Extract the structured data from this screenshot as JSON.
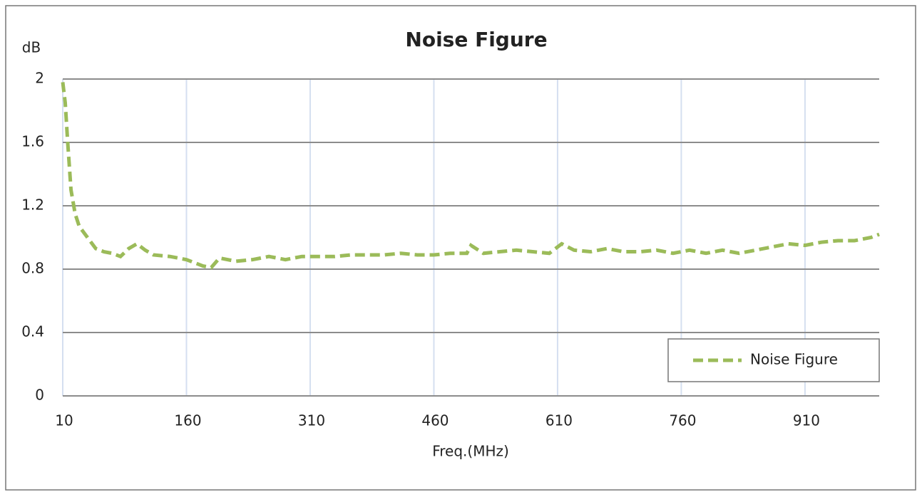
{
  "chart_data": {
    "type": "line",
    "title": "Noise Figure",
    "y_label": "dB",
    "x_label": "Freq.(MHz)",
    "x": [
      10,
      13,
      16,
      20,
      25,
      30,
      40,
      50,
      60,
      70,
      80,
      90,
      100,
      110,
      120,
      140,
      160,
      180,
      190,
      200,
      220,
      240,
      260,
      280,
      300,
      320,
      340,
      360,
      380,
      400,
      420,
      440,
      460,
      480,
      500,
      505,
      520,
      540,
      560,
      580,
      600,
      615,
      630,
      650,
      670,
      690,
      710,
      730,
      750,
      770,
      790,
      810,
      830,
      850,
      870,
      890,
      910,
      930,
      950,
      970,
      990,
      1000
    ],
    "series": [
      {
        "name": "Noise Figure",
        "color": "#9bbb59",
        "values": [
          1.98,
          1.85,
          1.6,
          1.3,
          1.15,
          1.07,
          1.0,
          0.93,
          0.91,
          0.9,
          0.88,
          0.93,
          0.96,
          0.92,
          0.89,
          0.88,
          0.86,
          0.82,
          0.81,
          0.87,
          0.85,
          0.86,
          0.88,
          0.86,
          0.88,
          0.88,
          0.88,
          0.89,
          0.89,
          0.89,
          0.9,
          0.89,
          0.89,
          0.9,
          0.9,
          0.95,
          0.9,
          0.91,
          0.92,
          0.91,
          0.9,
          0.96,
          0.92,
          0.91,
          0.93,
          0.91,
          0.91,
          0.92,
          0.9,
          0.92,
          0.9,
          0.92,
          0.9,
          0.92,
          0.94,
          0.96,
          0.95,
          0.97,
          0.98,
          0.98,
          1.0,
          1.02
        ]
      }
    ],
    "xlim": [
      10,
      1000
    ],
    "xticks": [
      10,
      160,
      310,
      460,
      610,
      760,
      910
    ],
    "ylim": [
      0,
      2
    ],
    "yticks": [
      0,
      0.4,
      0.8,
      1.2,
      1.6,
      2
    ],
    "grid": true,
    "legend": "lower right"
  }
}
